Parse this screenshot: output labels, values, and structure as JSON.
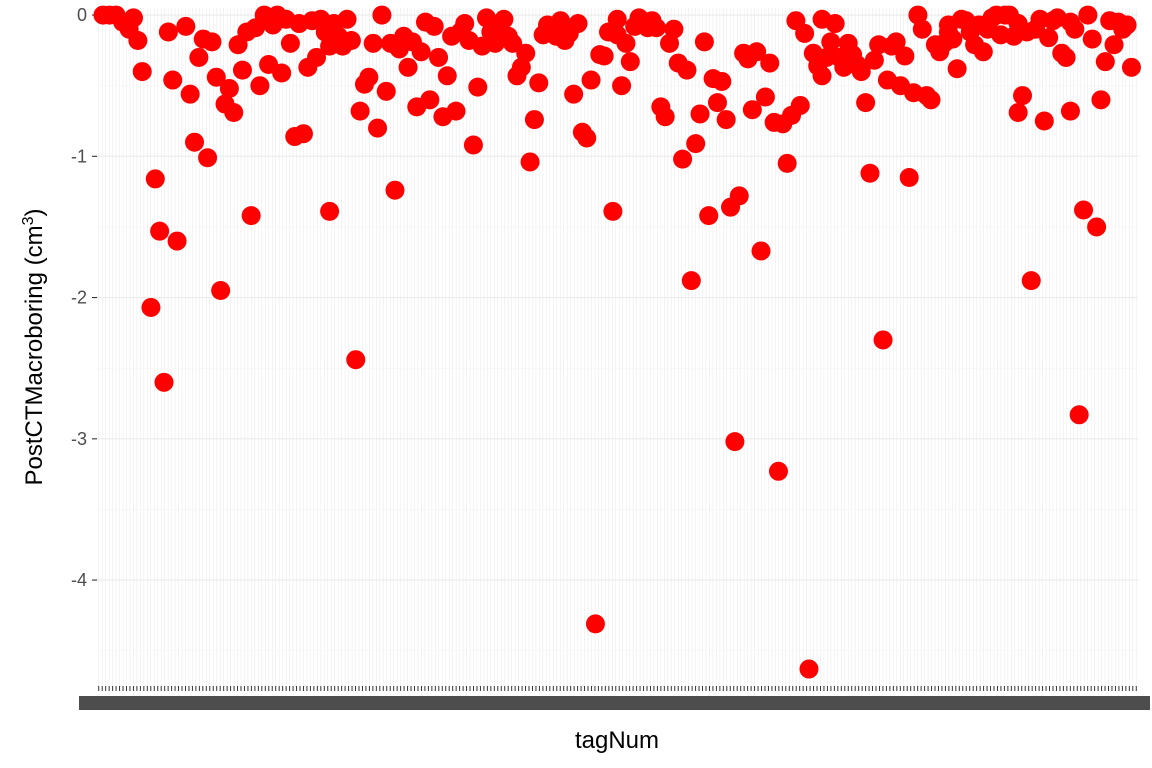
{
  "chart_data": {
    "type": "scatter",
    "title": "",
    "xlabel": "tagNum",
    "ylabel": "PostCTMacroboring (cm",
    "ylabel_superscript": "3",
    "ylabel_suffix": ")",
    "x_axis": "categorical (approx. 300 tag numbers; tick labels overlap and are illegible)",
    "ylim": [
      -4.75,
      0.05
    ],
    "y_ticks": [
      0,
      -1,
      -2,
      -3,
      -4
    ],
    "y_tick_labels": [
      "0",
      "-1",
      "-2",
      "-3",
      "-4"
    ],
    "grid": true,
    "legend": "none",
    "point_color": "#ff0000",
    "n_categories": 300,
    "points": [
      [
        0,
        0
      ],
      [
        3,
        0
      ],
      [
        6,
        0
      ],
      [
        9,
        -0.05
      ],
      [
        12,
        -0.1
      ],
      [
        14,
        -0.02
      ],
      [
        16,
        -0.18
      ],
      [
        18,
        -0.4
      ],
      [
        22,
        -2.07
      ],
      [
        24,
        -1.16
      ],
      [
        26,
        -1.53
      ],
      [
        28,
        -2.6
      ],
      [
        30,
        -0.12
      ],
      [
        32,
        -0.46
      ],
      [
        34,
        -1.6
      ],
      [
        38,
        -0.08
      ],
      [
        40,
        -0.56
      ],
      [
        42,
        -0.9
      ],
      [
        44,
        -0.3
      ],
      [
        46,
        -0.17
      ],
      [
        48,
        -1.01
      ],
      [
        50,
        -0.19
      ],
      [
        52,
        -0.44
      ],
      [
        54,
        -1.95
      ],
      [
        56,
        -0.63
      ],
      [
        58,
        -0.52
      ],
      [
        60,
        -0.69
      ],
      [
        62,
        -0.21
      ],
      [
        64,
        -0.39
      ],
      [
        66,
        -0.12
      ],
      [
        68,
        -1.42
      ],
      [
        70,
        -0.09
      ],
      [
        72,
        -0.5
      ],
      [
        74,
        0
      ],
      [
        76,
        -0.35
      ],
      [
        78,
        -0.07
      ],
      [
        80,
        0
      ],
      [
        82,
        -0.41
      ],
      [
        84,
        -0.03
      ],
      [
        86,
        -0.2
      ],
      [
        88,
        -0.86
      ],
      [
        90,
        -0.06
      ],
      [
        92,
        -0.84
      ],
      [
        94,
        -0.37
      ],
      [
        96,
        -0.04
      ],
      [
        98,
        -0.3
      ],
      [
        100,
        -0.03
      ],
      [
        102,
        -0.12
      ],
      [
        104,
        -1.39
      ],
      [
        106,
        -0.06
      ],
      [
        108,
        -0.15
      ],
      [
        110,
        -0.22
      ],
      [
        112,
        -0.03
      ],
      [
        114,
        -0.18
      ],
      [
        116,
        -2.44
      ],
      [
        118,
        -0.68
      ],
      [
        120,
        -0.49
      ],
      [
        122,
        -0.44
      ],
      [
        124,
        -0.2
      ],
      [
        126,
        -0.8
      ],
      [
        128,
        0
      ],
      [
        130,
        -0.54
      ],
      [
        132,
        -0.2
      ],
      [
        134,
        -1.24
      ],
      [
        136,
        -0.24
      ],
      [
        138,
        -0.15
      ],
      [
        140,
        -0.37
      ],
      [
        142,
        -0.19
      ],
      [
        144,
        -0.65
      ],
      [
        146,
        -0.26
      ],
      [
        148,
        -0.05
      ],
      [
        150,
        -0.6
      ],
      [
        152,
        -0.08
      ],
      [
        154,
        -0.3
      ],
      [
        156,
        -0.72
      ],
      [
        158,
        -0.43
      ],
      [
        160,
        -0.15
      ],
      [
        162,
        -0.68
      ],
      [
        164,
        -0.12
      ],
      [
        166,
        -0.06
      ],
      [
        168,
        -0.18
      ],
      [
        170,
        -0.92
      ],
      [
        172,
        -0.51
      ],
      [
        174,
        -0.22
      ],
      [
        176,
        -0.02
      ],
      [
        178,
        -0.12
      ],
      [
        180,
        -0.2
      ],
      [
        182,
        -0.08
      ],
      [
        184,
        -0.03
      ],
      [
        186,
        -0.15
      ],
      [
        188,
        -0.2
      ],
      [
        190,
        -0.43
      ],
      [
        192,
        -0.37
      ],
      [
        194,
        -0.27
      ],
      [
        196,
        -1.04
      ],
      [
        198,
        -0.74
      ],
      [
        200,
        -0.48
      ],
      [
        202,
        -0.14
      ],
      [
        204,
        -0.07
      ],
      [
        206,
        -0.12
      ],
      [
        208,
        -0.15
      ],
      [
        210,
        -0.04
      ],
      [
        212,
        -0.18
      ],
      [
        214,
        -0.13
      ],
      [
        216,
        -0.56
      ],
      [
        218,
        -0.06
      ],
      [
        220,
        -0.83
      ],
      [
        222,
        -0.87
      ],
      [
        224,
        -0.46
      ],
      [
        226,
        -4.31
      ],
      [
        228,
        -0.28
      ],
      [
        230,
        -0.29
      ],
      [
        232,
        -0.12
      ],
      [
        234,
        -1.39
      ],
      [
        236,
        -0.14
      ],
      [
        238,
        -0.5
      ],
      [
        240,
        -0.2
      ],
      [
        242,
        -0.33
      ],
      [
        244,
        -0.08
      ],
      [
        246,
        -0.02
      ],
      [
        248,
        -0.05
      ],
      [
        250,
        -0.06
      ],
      [
        252,
        -0.04
      ],
      [
        254,
        -0.09
      ],
      [
        256,
        -0.65
      ],
      [
        258,
        -0.72
      ],
      [
        260,
        -0.2
      ],
      [
        262,
        -0.1
      ],
      [
        264,
        -0.34
      ],
      [
        266,
        -1.02
      ],
      [
        268,
        -0.39
      ],
      [
        270,
        -1.88
      ],
      [
        272,
        -0.91
      ],
      [
        274,
        -0.7
      ],
      [
        276,
        -0.19
      ],
      [
        278,
        -1.42
      ],
      [
        280,
        -0.45
      ],
      [
        282,
        -0.62
      ],
      [
        284,
        -0.47
      ],
      [
        286,
        -0.74
      ],
      [
        288,
        -1.36
      ],
      [
        290,
        -3.02
      ],
      [
        292,
        -1.28
      ],
      [
        294,
        -0.27
      ],
      [
        296,
        -0.31
      ],
      [
        298,
        -0.67
      ],
      [
        300,
        -0.26
      ],
      [
        302,
        -1.67
      ],
      [
        304,
        -0.58
      ],
      [
        306,
        -0.34
      ],
      [
        308,
        -0.76
      ],
      [
        310,
        -3.23
      ],
      [
        312,
        -0.77
      ],
      [
        314,
        -1.05
      ],
      [
        316,
        -0.71
      ],
      [
        318,
        -0.04
      ],
      [
        320,
        -0.64
      ],
      [
        322,
        -0.13
      ],
      [
        324,
        -4.63
      ],
      [
        326,
        -0.27
      ],
      [
        328,
        -0.36
      ],
      [
        330,
        -0.43
      ],
      [
        332,
        -0.3
      ],
      [
        334,
        -0.19
      ],
      [
        336,
        -0.06
      ],
      [
        338,
        -0.3
      ],
      [
        340,
        -0.37
      ],
      [
        342,
        -0.2
      ],
      [
        344,
        -0.28
      ],
      [
        346,
        -0.35
      ],
      [
        348,
        -0.4
      ],
      [
        350,
        -0.62
      ],
      [
        352,
        -1.12
      ],
      [
        354,
        -0.32
      ],
      [
        356,
        -0.21
      ],
      [
        358,
        -2.3
      ],
      [
        360,
        -0.46
      ],
      [
        362,
        -0.22
      ],
      [
        364,
        -0.19
      ],
      [
        366,
        -0.5
      ],
      [
        368,
        -0.29
      ],
      [
        370,
        -1.15
      ],
      [
        372,
        -0.55
      ],
      [
        374,
        0
      ],
      [
        376,
        -0.1
      ],
      [
        378,
        -0.57
      ],
      [
        380,
        -0.6
      ],
      [
        382,
        -0.21
      ],
      [
        384,
        -0.26
      ],
      [
        386,
        -0.2
      ],
      [
        388,
        -0.07
      ],
      [
        390,
        -0.17
      ],
      [
        392,
        -0.38
      ],
      [
        394,
        -0.03
      ],
      [
        396,
        -0.04
      ],
      [
        398,
        -0.12
      ],
      [
        400,
        -0.21
      ],
      [
        402,
        -0.07
      ],
      [
        404,
        -0.26
      ],
      [
        406,
        -0.1
      ],
      [
        408,
        -0.02
      ],
      [
        410,
        0
      ],
      [
        412,
        -0.14
      ],
      [
        414,
        0
      ],
      [
        416,
        0
      ],
      [
        418,
        -0.15
      ],
      [
        420,
        -0.69
      ],
      [
        422,
        -0.57
      ],
      [
        424,
        -0.12
      ],
      [
        426,
        -1.88
      ],
      [
        428,
        -0.1
      ],
      [
        430,
        -0.03
      ],
      [
        432,
        -0.75
      ],
      [
        434,
        -0.16
      ],
      [
        436,
        -0.04
      ],
      [
        438,
        -0.02
      ],
      [
        440,
        -0.27
      ],
      [
        442,
        -0.3
      ],
      [
        444,
        -0.68
      ],
      [
        446,
        -0.1
      ],
      [
        448,
        -2.83
      ],
      [
        450,
        -1.38
      ],
      [
        452,
        0
      ],
      [
        454,
        -0.17
      ],
      [
        456,
        -1.5
      ],
      [
        458,
        -0.6
      ],
      [
        460,
        -0.33
      ],
      [
        462,
        -0.04
      ],
      [
        464,
        -0.21
      ],
      [
        466,
        -0.05
      ],
      [
        468,
        -0.1
      ],
      [
        470,
        -0.07
      ],
      [
        472,
        -0.37
      ],
      [
        104,
        -0.22
      ],
      [
        236,
        -0.03
      ],
      [
        250,
        -0.09
      ],
      [
        330,
        -0.03
      ],
      [
        340,
        -0.3
      ],
      [
        388,
        -0.12
      ],
      [
        420,
        -0.06
      ],
      [
        444,
        -0.05
      ]
    ]
  }
}
